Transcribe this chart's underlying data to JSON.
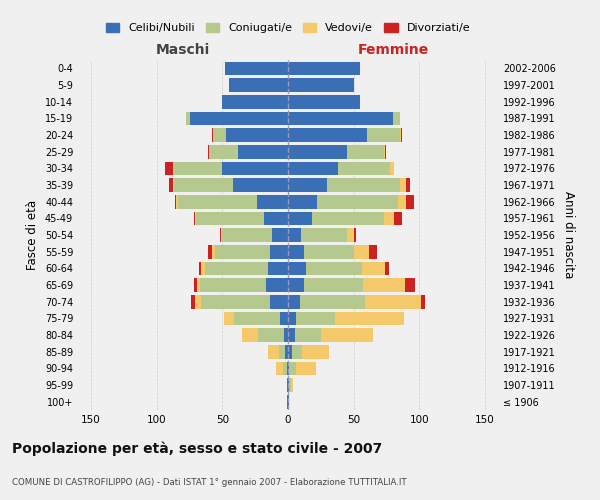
{
  "age_groups": [
    "100+",
    "95-99",
    "90-94",
    "85-89",
    "80-84",
    "75-79",
    "70-74",
    "65-69",
    "60-64",
    "55-59",
    "50-54",
    "45-49",
    "40-44",
    "35-39",
    "30-34",
    "25-29",
    "20-24",
    "15-19",
    "10-14",
    "5-9",
    "0-4"
  ],
  "birth_years": [
    "≤ 1906",
    "1907-1911",
    "1912-1916",
    "1917-1921",
    "1922-1926",
    "1927-1931",
    "1932-1936",
    "1937-1941",
    "1942-1946",
    "1947-1951",
    "1952-1956",
    "1957-1961",
    "1962-1966",
    "1967-1971",
    "1972-1976",
    "1977-1981",
    "1982-1986",
    "1987-1991",
    "1992-1996",
    "1997-2001",
    "2002-2006"
  ],
  "maschi": {
    "celibi": [
      1,
      1,
      1,
      2,
      3,
      6,
      14,
      17,
      15,
      14,
      12,
      18,
      24,
      42,
      50,
      38,
      47,
      75,
      50,
      45,
      48
    ],
    "coniugati": [
      0,
      0,
      3,
      5,
      20,
      35,
      52,
      50,
      48,
      42,
      38,
      52,
      60,
      45,
      38,
      22,
      10,
      3,
      0,
      0,
      0
    ],
    "vedovi": [
      0,
      0,
      5,
      8,
      12,
      8,
      5,
      2,
      3,
      2,
      1,
      1,
      1,
      1,
      0,
      0,
      0,
      0,
      0,
      0,
      0
    ],
    "divorziati": [
      0,
      0,
      0,
      0,
      0,
      0,
      3,
      3,
      2,
      3,
      1,
      1,
      1,
      3,
      6,
      1,
      1,
      0,
      0,
      0,
      0
    ]
  },
  "femmine": {
    "nubili": [
      1,
      1,
      1,
      3,
      5,
      6,
      9,
      12,
      14,
      12,
      10,
      18,
      22,
      30,
      38,
      45,
      60,
      80,
      55,
      50,
      55
    ],
    "coniugate": [
      0,
      1,
      5,
      8,
      20,
      30,
      50,
      45,
      42,
      38,
      35,
      55,
      62,
      55,
      40,
      28,
      25,
      5,
      0,
      0,
      0
    ],
    "vedove": [
      0,
      2,
      15,
      20,
      40,
      52,
      42,
      32,
      18,
      12,
      5,
      8,
      6,
      5,
      3,
      1,
      1,
      0,
      0,
      0,
      0
    ],
    "divorziate": [
      0,
      0,
      0,
      0,
      0,
      0,
      3,
      8,
      3,
      6,
      2,
      6,
      6,
      3,
      0,
      1,
      1,
      0,
      0,
      0,
      0
    ]
  },
  "colors": {
    "celibi": "#3b6fb5",
    "coniugati": "#b5c98e",
    "vedovi": "#f5c96a",
    "divorziati": "#cc2222"
  },
  "title": "Popolazione per età, sesso e stato civile - 2007",
  "subtitle": "COMUNE DI CASTROFILIPPO (AG) - Dati ISTAT 1° gennaio 2007 - Elaborazione TUTTITALIA.IT",
  "xlabel_left": "Maschi",
  "xlabel_right": "Femmine",
  "ylabel_left": "Fasce di età",
  "ylabel_right": "Anni di nascita",
  "xlim": 160,
  "background_color": "#f0f0f0",
  "grid_color": "#cccccc",
  "legend_labels": [
    "Celibi/Nubili",
    "Coniugati/e",
    "Vedovi/e",
    "Divorziati/e"
  ]
}
